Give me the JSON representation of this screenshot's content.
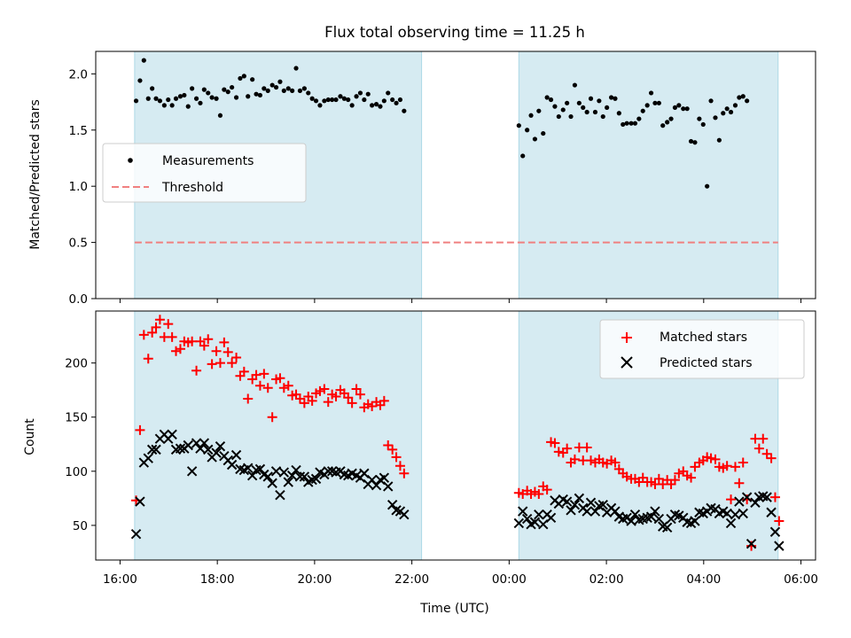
{
  "chart_data": {
    "title": "Flux total observing time = 11.25 h",
    "xlabel": "Time (UTC)",
    "x_unit": "hours since 16:00 UTC (continues past midnight)",
    "xlim": [
      -0.5,
      14.3
    ],
    "xticks": [
      {
        "value": 0,
        "label": "16:00"
      },
      {
        "value": 2,
        "label": "18:00"
      },
      {
        "value": 4,
        "label": "20:00"
      },
      {
        "value": 6,
        "label": "22:00"
      },
      {
        "value": 8,
        "label": "00:00"
      },
      {
        "value": 10,
        "label": "02:00"
      },
      {
        "value": 12,
        "label": "04:00"
      },
      {
        "value": 14,
        "label": "06:00"
      }
    ],
    "observing_windows": [
      [
        0.3,
        6.2
      ],
      [
        8.2,
        13.53
      ]
    ],
    "window_color": "#add8e6",
    "top": {
      "type": "scatter",
      "ylabel": "Matched/Predicted stars",
      "ylim": [
        0,
        2.2
      ],
      "yticks": [
        "0.0",
        "0.5",
        "1.0",
        "1.5",
        "2.0"
      ],
      "legend": [
        "Measurements",
        "Threshold"
      ],
      "threshold": 0.5,
      "threshold_color": "#f08080"
    },
    "bottom": {
      "type": "scatter",
      "ylabel": "Count",
      "ylim": [
        18,
        248
      ],
      "yticks": [
        "50",
        "100",
        "150",
        "200"
      ],
      "legend": [
        "Matched stars",
        "Predicted stars"
      ]
    },
    "series": {
      "x": [
        0.33,
        0.41,
        0.49,
        0.58,
        0.66,
        0.74,
        0.82,
        0.91,
        0.99,
        1.07,
        1.15,
        1.24,
        1.32,
        1.4,
        1.48,
        1.57,
        1.65,
        1.73,
        1.81,
        1.89,
        1.98,
        2.06,
        2.14,
        2.22,
        2.3,
        2.39,
        2.47,
        2.55,
        2.63,
        2.72,
        2.8,
        2.88,
        2.96,
        3.04,
        3.13,
        3.21,
        3.29,
        3.37,
        3.46,
        3.54,
        3.62,
        3.7,
        3.79,
        3.87,
        3.95,
        4.03,
        4.11,
        4.2,
        4.28,
        4.36,
        4.44,
        4.53,
        4.61,
        4.69,
        4.77,
        4.86,
        4.94,
        5.02,
        5.1,
        5.18,
        5.27,
        5.35,
        5.43,
        5.51,
        5.6,
        5.68,
        5.76,
        5.84,
        5.93,
        6.01,
        6.09,
        6.17,
        8.2,
        8.28,
        8.37,
        8.45,
        8.53,
        8.61,
        8.7,
        8.78,
        8.86,
        8.94,
        9.02,
        9.11,
        9.19,
        9.27,
        9.35,
        9.44,
        9.52,
        9.6,
        9.68,
        9.77,
        9.85,
        9.93,
        10.01,
        10.1,
        10.18,
        10.26,
        10.34,
        10.42,
        10.51,
        10.59,
        10.67,
        10.75,
        10.84,
        10.92,
        11.0,
        11.08,
        11.16,
        11.25,
        11.33,
        11.41,
        11.49,
        11.58,
        11.66,
        11.74,
        11.82,
        11.91,
        11.99,
        12.07,
        12.15,
        12.24,
        12.32,
        12.4,
        12.48,
        12.56,
        12.65,
        12.73,
        12.81,
        12.89,
        12.98,
        13.06,
        13.14,
        13.22,
        13.3,
        13.39,
        13.47,
        13.55
      ],
      "matched": [
        73,
        138,
        226,
        204,
        228,
        233,
        240,
        224,
        236,
        224,
        211,
        213,
        220,
        219,
        220,
        193,
        220,
        216,
        222,
        199,
        211,
        200,
        219,
        210,
        200,
        205,
        188,
        192,
        167,
        185,
        189,
        179,
        190,
        177,
        150,
        185,
        186,
        177,
        179,
        170,
        171,
        167,
        163,
        169,
        165,
        172,
        174,
        176,
        164,
        171,
        169,
        175,
        172,
        168,
        163,
        176,
        171,
        159,
        162,
        160,
        164,
        161,
        165,
        124,
        120,
        113,
        105,
        98,
        null,
        null,
        null,
        null,
        80,
        79,
        82,
        79,
        81,
        79,
        86,
        83,
        127,
        126,
        118,
        117,
        121,
        108,
        111,
        122,
        110,
        122,
        110,
        108,
        111,
        108,
        107,
        110,
        108,
        102,
        98,
        95,
        93,
        93,
        90,
        94,
        90,
        90,
        88,
        93,
        88,
        92,
        88,
        92,
        98,
        100,
        96,
        94,
        104,
        108,
        110,
        113,
        112,
        111,
        104,
        103,
        105,
        74,
        104,
        89,
        108,
        74,
        31,
        130,
        121,
        130,
        116,
        112,
        76,
        54
      ],
      "predicted": [
        42,
        72,
        108,
        112,
        120,
        120,
        130,
        134,
        130,
        134,
        120,
        121,
        121,
        124,
        100,
        126,
        121,
        126,
        120,
        113,
        117,
        123,
        114,
        110,
        106,
        115,
        102,
        101,
        103,
        96,
        101,
        102,
        97,
        95,
        89,
        100,
        78,
        99,
        90,
        96,
        101,
        95,
        95,
        90,
        92,
        93,
        99,
        97,
        100,
        100,
        99,
        100,
        97,
        96,
        98,
        96,
        94,
        98,
        88,
        92,
        87,
        92,
        94,
        86,
        69,
        64,
        63,
        60,
        null,
        null,
        null,
        null,
        52,
        63,
        56,
        51,
        53,
        60,
        51,
        60,
        57,
        73,
        70,
        74,
        72,
        64,
        69,
        75,
        66,
        63,
        71,
        63,
        68,
        69,
        62,
        66,
        63,
        58,
        56,
        57,
        54,
        60,
        55,
        56,
        57,
        58,
        63,
        56,
        49,
        48,
        56,
        60,
        59,
        57,
        53,
        52,
        54,
        62,
        61,
        63,
        66,
        65,
        61,
        63,
        61,
        52,
        60,
        72,
        61,
        76,
        33,
        71,
        76,
        77,
        76,
        62,
        44,
        31
      ],
      "ratio": [
        1.76,
        1.94,
        2.12,
        1.78,
        1.87,
        1.78,
        1.76,
        1.72,
        1.77,
        1.72,
        1.78,
        1.8,
        1.81,
        1.71,
        1.87,
        1.78,
        1.74,
        1.86,
        1.83,
        1.79,
        1.78,
        1.63,
        1.86,
        1.84,
        1.88,
        1.79,
        1.96,
        1.98,
        1.8,
        1.95,
        1.82,
        1.81,
        1.87,
        1.85,
        1.9,
        1.88,
        1.93,
        1.85,
        1.87,
        1.85,
        2.05,
        1.85,
        1.87,
        1.83,
        1.78,
        1.76,
        1.72,
        1.76,
        1.77,
        1.77,
        1.77,
        1.8,
        1.78,
        1.77,
        1.72,
        1.8,
        1.83,
        1.77,
        1.82,
        1.72,
        1.73,
        1.71,
        1.76,
        1.83,
        1.77,
        1.74,
        1.77,
        1.67,
        null,
        null,
        null,
        null,
        1.54,
        1.27,
        1.5,
        1.63,
        1.42,
        1.67,
        1.47,
        1.79,
        1.77,
        1.71,
        1.62,
        1.68,
        1.74,
        1.62,
        1.9,
        1.74,
        1.7,
        1.66,
        1.78,
        1.66,
        1.76,
        1.62,
        1.7,
        1.79,
        1.78,
        1.65,
        1.55,
        1.56,
        1.56,
        1.56,
        1.6,
        1.67,
        1.72,
        1.83,
        1.74,
        1.74,
        1.54,
        1.57,
        1.6,
        1.7,
        1.72,
        1.69,
        1.69,
        1.4,
        1.39,
        1.6,
        1.55,
        1.0,
        1.76,
        1.61,
        1.41,
        1.65,
        1.69,
        1.66,
        1.72,
        1.79,
        1.8,
        1.76
      ],
      "matched_color": "#ff0000",
      "predicted_color": "#000000",
      "ratio_color": "#000000"
    }
  }
}
